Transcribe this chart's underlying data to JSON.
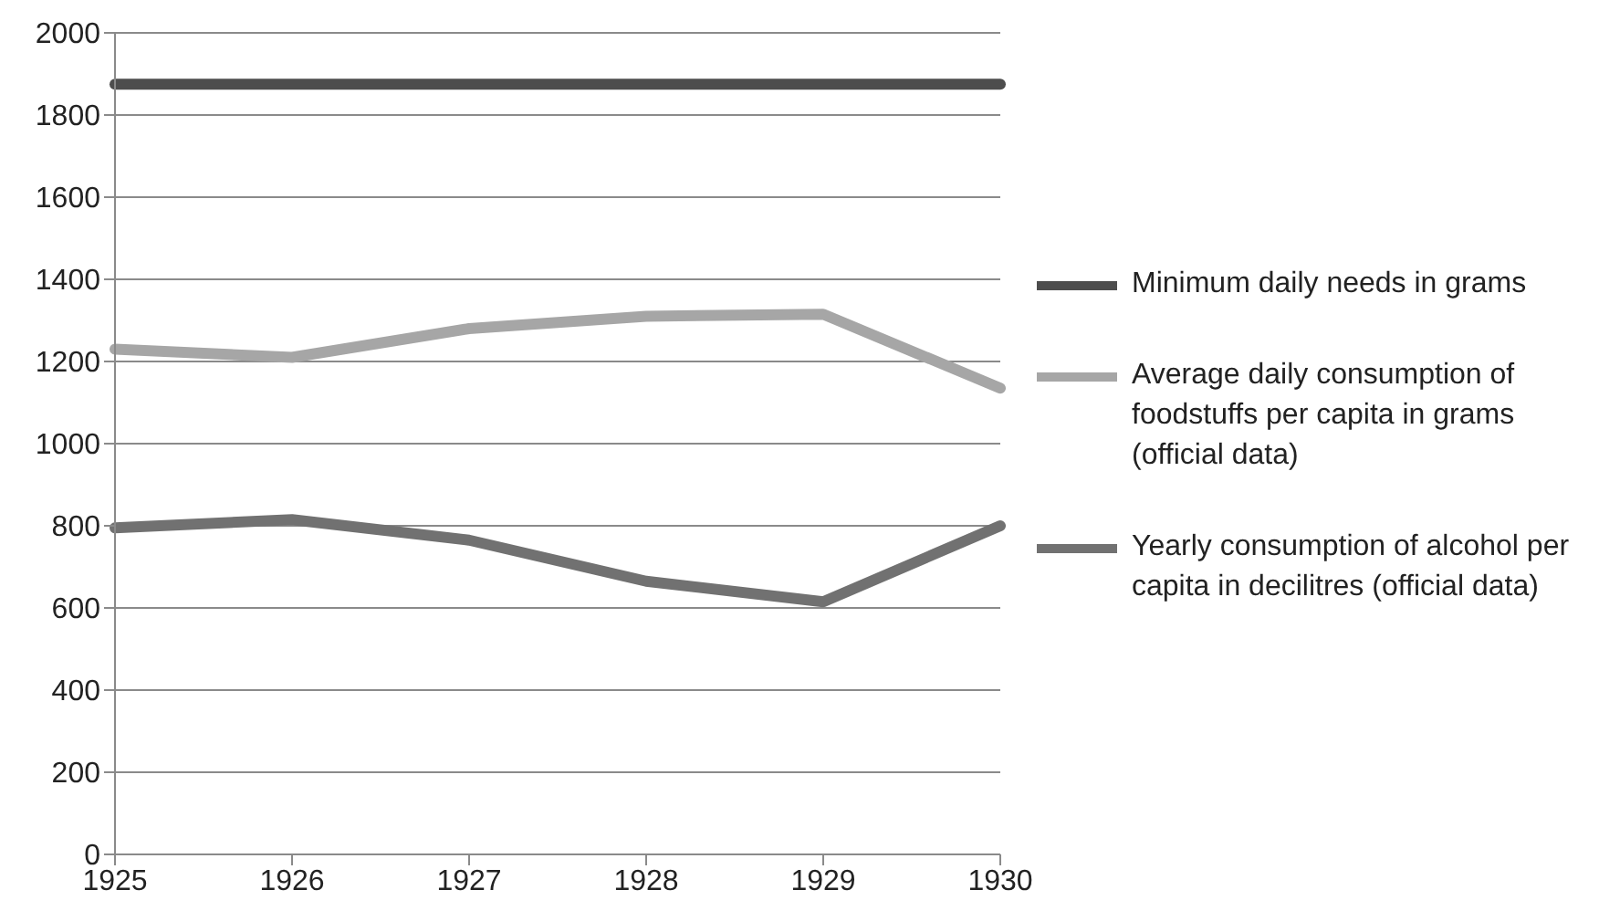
{
  "chart_data": {
    "type": "line",
    "categories": [
      "1925",
      "1926",
      "1927",
      "1928",
      "1929",
      "1930"
    ],
    "series": [
      {
        "name": "Minimum daily needs in grams",
        "color": "#4d4d4d",
        "values": [
          1875,
          1875,
          1875,
          1875,
          1875,
          1875
        ]
      },
      {
        "name": "Average daily consumption of foodstuffs per capita in grams (official data)",
        "color": "#a6a6a6",
        "values": [
          1230,
          1210,
          1280,
          1310,
          1315,
          1135
        ]
      },
      {
        "name": "Yearly consumption of alcohol per capita in decilitres (official data)",
        "color": "#717171",
        "values": [
          795,
          815,
          765,
          665,
          615,
          800
        ]
      }
    ],
    "ylim": [
      0,
      2000
    ],
    "yticks": [
      0,
      200,
      400,
      600,
      800,
      1000,
      1200,
      1400,
      1600,
      1800,
      2000
    ],
    "grid": "y",
    "legend": "right",
    "marker": "none",
    "line_style": "solid"
  }
}
